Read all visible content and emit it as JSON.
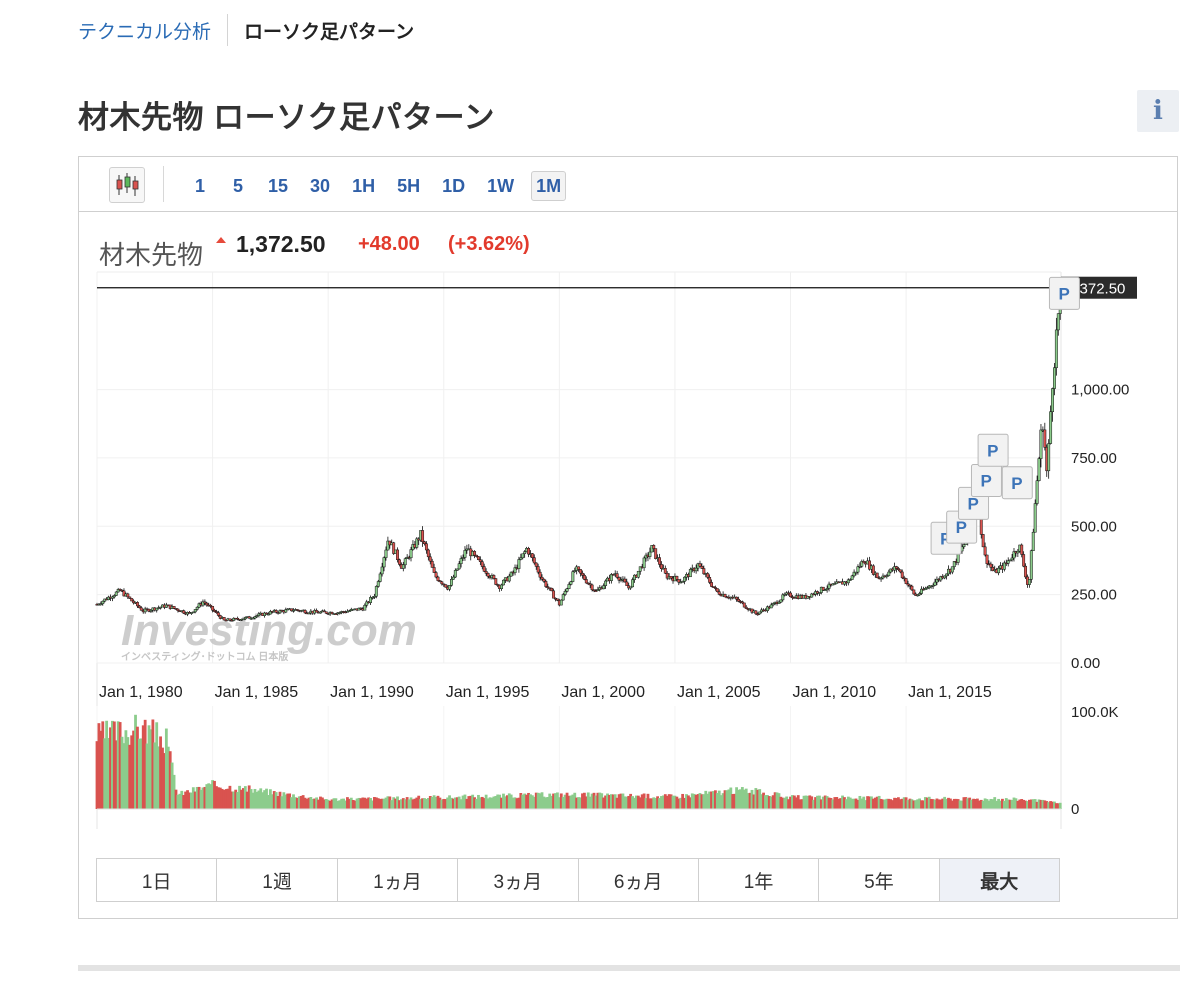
{
  "breadcrumb": {
    "link": "テクニカル分析",
    "active": "ローソク足パターン"
  },
  "page_title": "材木先物 ローソク足パターン",
  "info_button": "i",
  "toolbar": {
    "intervals": [
      "1",
      "5",
      "15",
      "30",
      "1H",
      "5H",
      "1D",
      "1W",
      "1M"
    ],
    "active_interval": "1M"
  },
  "quote": {
    "name": "材木先物",
    "price": "1,372.50",
    "change": "+48.00",
    "change_pct": "(+3.62%)"
  },
  "watermark": {
    "brand": "Investing.com",
    "sub": "インベスティング･ドットコム 日本版"
  },
  "ranges": [
    "1日",
    "1週",
    "1ヵ月",
    "3ヵ月",
    "6ヵ月",
    "1年",
    "5年",
    "最大"
  ],
  "active_range": "最大",
  "colors": {
    "up": "#8ccc8c",
    "down": "#d9534f",
    "accent": "#2f5fa7",
    "negative_text": "#e23a2c"
  },
  "chart_data": {
    "type": "candlestick",
    "interval": "1M",
    "last_price_label": "1,372.50",
    "last_price": 1372.5,
    "y_ticks": [
      "1,000.00",
      "750.00",
      "500.00",
      "250.00",
      "0.00"
    ],
    "y_tick_values": [
      1000,
      750,
      500,
      250,
      0
    ],
    "ylim": [
      0,
      1430
    ],
    "x_ticks": [
      "Jan 1, 1980",
      "Jan 1, 1985",
      "Jan 1, 1990",
      "Jan 1, 1995",
      "Jan 1, 2000",
      "Jan 1, 2005",
      "Jan 1, 2010",
      "Jan 1, 2015"
    ],
    "x_tick_years": [
      1980,
      1985,
      1990,
      1995,
      2000,
      2005,
      2010,
      2015
    ],
    "xlim": [
      1980.0,
      2021.7
    ],
    "price_series": {
      "x": [
        1980.0,
        1981.0,
        1982.0,
        1983.0,
        1984.0,
        1984.6,
        1985.5,
        1986.5,
        1987.5,
        1988.5,
        1989.5,
        1990.5,
        1991.5,
        1992.0,
        1992.6,
        1993.2,
        1994.0,
        1994.6,
        1995.2,
        1996.0,
        1996.7,
        1997.4,
        1998.0,
        1998.6,
        1999.3,
        2000.0,
        2000.7,
        2001.6,
        2002.4,
        2003.0,
        2004.0,
        2004.6,
        2005.3,
        2006.0,
        2006.8,
        2007.6,
        2008.5,
        2009.2,
        2009.8,
        2010.6,
        2011.5,
        2012.5,
        2013.2,
        2013.8,
        2014.6,
        2015.4,
        2016.3,
        2017.0,
        2017.6,
        2018.1,
        2018.4,
        2018.8,
        2019.3,
        2019.9,
        2020.3,
        2020.6,
        2020.9,
        2021.1,
        2021.3,
        2021.5,
        2021.7
      ],
      "y": [
        215,
        265,
        190,
        210,
        180,
        225,
        155,
        165,
        185,
        195,
        185,
        185,
        200,
        250,
        455,
        350,
        470,
        320,
        275,
        420,
        350,
        280,
        330,
        420,
        300,
        215,
        345,
        260,
        330,
        275,
        420,
        320,
        300,
        360,
        260,
        235,
        180,
        210,
        250,
        240,
        275,
        300,
        380,
        310,
        350,
        245,
        300,
        350,
        450,
        580,
        390,
        330,
        360,
        430,
        270,
        600,
        900,
        680,
        1000,
        1200,
        1372.5
      ]
    },
    "p_markers": 7,
    "volume": {
      "y_ticks": [
        "100.0K",
        "0"
      ],
      "y_tick_values": [
        100000,
        0
      ],
      "ylim": [
        0,
        100000
      ],
      "x": [
        1980.0,
        1981.0,
        1982.0,
        1983.0,
        1983.5,
        1985.0,
        1990.0,
        1995.0,
        2000.0,
        2005.0,
        2008.0,
        2010.0,
        2015.0,
        2020.0,
        2021.7
      ],
      "y": [
        75000,
        80000,
        84000,
        70000,
        15000,
        25000,
        10000,
        12000,
        15000,
        13000,
        20000,
        12000,
        11000,
        10000,
        6000
      ]
    }
  }
}
